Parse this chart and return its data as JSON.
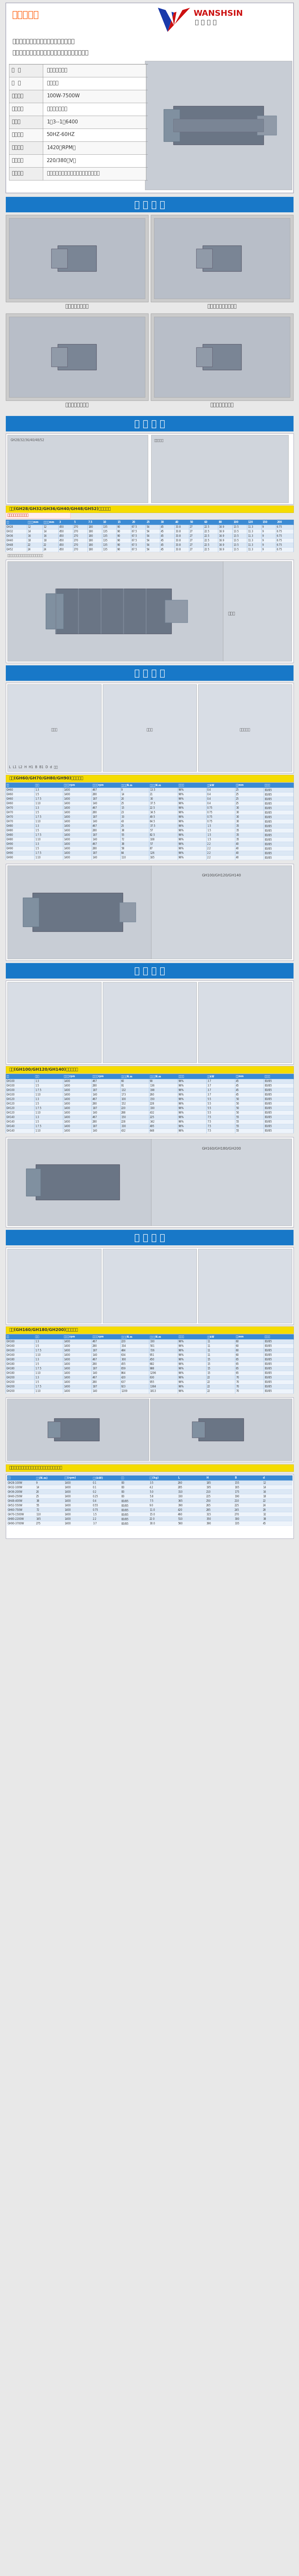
{
  "page_bg": "#e8e8e8",
  "content_bg": "#ffffff",
  "border_color": "#b0b0c0",
  "blue_header_bg": "#1878c8",
  "warm_tip_title": "温馨提示：",
  "warm_tip_lines": [
    "为了确保您在选型上不会出现偏差，请您",
    "在下单前请和客服沟通好，确定好型号，在付款。"
  ],
  "brand_latin": "WANSHSIN",
  "brand_cn": "萬 鑫 精 工",
  "spec_rows": [
    [
      "名  称",
      "中型齿轮减速机"
    ],
    [
      "品  牌",
      "万鑫电机"
    ],
    [
      "输出功率",
      "100W-7500W"
    ],
    [
      "产品类型",
      "三相异步电动机"
    ],
    [
      "减速比",
      "1：3--1：6400"
    ],
    [
      "输出频率",
      "50HZ-60HZ"
    ],
    [
      "额定转速",
      "1420（RPM）"
    ],
    [
      "额定电压",
      "220/380（V）"
    ],
    [
      "应用范围",
      "机械设备，包装机，模切机，流水设备等"
    ]
  ],
  "sec_product_show": "产 品 展 示",
  "captions": [
    "立式直接型减速机",
    "木工机械专用减速馬達",
    "卧式直接型减速机",
    "立式直接型减速机"
  ],
  "sec_small_param": "小 型 参 数",
  "sec_product_param": "产 品 参 数",
  "sec_mid_param1": "中 型 参 数",
  "sec_mid_param2": "中 型 参 数",
  "sec_mid_param3": "中 型 参 数",
  "small_tbl_title": "小型(GH28/GH32/GH36/GH40/GH48/GH52)规格参数表",
  "mid_tbl_title1": "中型(GH60/GH70/GH80/GH90)规格参数表",
  "mid_tbl_title2": "中型(GH100/GH120/GH140)规格参数表",
  "mid_tbl_title3": "中型(GH160/GH180/GH200)规格参数表",
  "link_text": "申请查看更多规格参数",
  "note_text": "注：以上数据仅供参考，实际以产品为准。",
  "small_headers": [
    "型号",
    "出力轴径mm",
    "输入轴径mm",
    "3",
    "5",
    "7.5",
    "10",
    "15",
    "20",
    "25",
    "30",
    "40",
    "50",
    "60",
    "80",
    "100",
    "120",
    "150",
    "200"
  ],
  "small_data": [
    [
      "GH28",
      "12",
      "12",
      "450",
      "270",
      "180",
      "135",
      "90",
      "67.5",
      "54",
      "45",
      "33.8",
      "27",
      "22.5",
      "16.9",
      "13.5",
      "11.3",
      "9",
      "6.75"
    ],
    [
      "GH32",
      "14",
      "14",
      "450",
      "270",
      "180",
      "135",
      "90",
      "67.5",
      "54",
      "45",
      "33.8",
      "27",
      "22.5",
      "16.9",
      "13.5",
      "11.3",
      "9",
      "6.75"
    ],
    [
      "GH36",
      "16",
      "16",
      "450",
      "270",
      "180",
      "135",
      "90",
      "67.5",
      "54",
      "45",
      "33.8",
      "27",
      "22.5",
      "16.9",
      "13.5",
      "11.3",
      "9",
      "6.75"
    ],
    [
      "GH40",
      "18",
      "18",
      "450",
      "270",
      "180",
      "135",
      "90",
      "67.5",
      "54",
      "45",
      "33.8",
      "27",
      "22.5",
      "16.9",
      "13.5",
      "11.3",
      "9",
      "6.75"
    ],
    [
      "GH48",
      "22",
      "22",
      "450",
      "270",
      "180",
      "135",
      "90",
      "67.5",
      "54",
      "45",
      "33.8",
      "27",
      "22.5",
      "16.9",
      "13.5",
      "11.3",
      "9",
      "6.75"
    ],
    [
      "GH52",
      "24",
      "24",
      "450",
      "270",
      "180",
      "135",
      "90",
      "67.5",
      "54",
      "45",
      "33.8",
      "27",
      "22.5",
      "16.9",
      "13.5",
      "11.3",
      "9",
      "6.75"
    ]
  ],
  "mid_headers1": [
    "型号",
    "减速比",
    "输入转速rpm",
    "输出转速rpm",
    "额定扭矩N.m",
    "最大扭矩N.m",
    "传动效率",
    "功率kW",
    "轴径mm",
    "安装方式"
  ],
  "mid_data1": [
    [
      "GH60",
      "1:3",
      "1400",
      "467",
      "9",
      "13.5",
      "96%",
      "0.4",
      "25",
      "B3/B5"
    ],
    [
      "GH60",
      "1:5",
      "1400",
      "280",
      "14",
      "21",
      "96%",
      "0.4",
      "25",
      "B3/B5"
    ],
    [
      "GH60",
      "1:7.5",
      "1400",
      "187",
      "20",
      "30",
      "96%",
      "0.4",
      "25",
      "B3/B5"
    ],
    [
      "GH60",
      "1:10",
      "1400",
      "140",
      "25",
      "37.5",
      "96%",
      "0.4",
      "25",
      "B3/B5"
    ],
    [
      "GH70",
      "1:3",
      "1400",
      "467",
      "15",
      "22.5",
      "96%",
      "0.75",
      "30",
      "B3/B5"
    ],
    [
      "GH70",
      "1:5",
      "1400",
      "280",
      "23",
      "34.5",
      "96%",
      "0.75",
      "30",
      "B3/B5"
    ],
    [
      "GH70",
      "1:7.5",
      "1400",
      "187",
      "33",
      "49.5",
      "96%",
      "0.75",
      "30",
      "B3/B5"
    ],
    [
      "GH70",
      "1:10",
      "1400",
      "140",
      "43",
      "64.5",
      "96%",
      "0.75",
      "30",
      "B3/B5"
    ],
    [
      "GH80",
      "1:3",
      "1400",
      "467",
      "25",
      "37.5",
      "96%",
      "1.5",
      "35",
      "B3/B5"
    ],
    [
      "GH80",
      "1:5",
      "1400",
      "280",
      "38",
      "57",
      "96%",
      "1.5",
      "35",
      "B3/B5"
    ],
    [
      "GH80",
      "1:7.5",
      "1400",
      "187",
      "55",
      "82.5",
      "96%",
      "1.5",
      "35",
      "B3/B5"
    ],
    [
      "GH80",
      "1:10",
      "1400",
      "140",
      "72",
      "108",
      "96%",
      "1.5",
      "35",
      "B3/B5"
    ],
    [
      "GH90",
      "1:3",
      "1400",
      "467",
      "38",
      "57",
      "96%",
      "2.2",
      "40",
      "B3/B5"
    ],
    [
      "GH90",
      "1:5",
      "1400",
      "280",
      "58",
      "87",
      "96%",
      "2.2",
      "40",
      "B3/B5"
    ],
    [
      "GH90",
      "1:7.5",
      "1400",
      "187",
      "84",
      "126",
      "96%",
      "2.2",
      "40",
      "B3/B5"
    ],
    [
      "GH90",
      "1:10",
      "1400",
      "140",
      "110",
      "165",
      "96%",
      "2.2",
      "40",
      "B3/B5"
    ]
  ],
  "mid_headers2": [
    "型号",
    "减速比",
    "输入转速rpm",
    "输出转速rpm",
    "额定扭矩N.m",
    "最大扭矩N.m",
    "传动效率",
    "功率kW",
    "轴径mm",
    "安装方式"
  ],
  "mid_data2": [
    [
      "GH100",
      "1:3",
      "1400",
      "467",
      "60",
      "90",
      "96%",
      "3.7",
      "45",
      "B3/B5"
    ],
    [
      "GH100",
      "1:5",
      "1400",
      "280",
      "91",
      "136",
      "96%",
      "3.7",
      "45",
      "B3/B5"
    ],
    [
      "GH100",
      "1:7.5",
      "1400",
      "187",
      "132",
      "198",
      "96%",
      "3.7",
      "45",
      "B3/B5"
    ],
    [
      "GH100",
      "1:10",
      "1400",
      "140",
      "173",
      "260",
      "96%",
      "3.7",
      "45",
      "B3/B5"
    ],
    [
      "GH120",
      "1:3",
      "1400",
      "467",
      "100",
      "150",
      "96%",
      "5.5",
      "50",
      "B3/B5"
    ],
    [
      "GH120",
      "1:5",
      "1400",
      "280",
      "152",
      "228",
      "96%",
      "5.5",
      "50",
      "B3/B5"
    ],
    [
      "GH120",
      "1:7.5",
      "1400",
      "187",
      "220",
      "330",
      "96%",
      "5.5",
      "50",
      "B3/B5"
    ],
    [
      "GH120",
      "1:10",
      "1400",
      "140",
      "288",
      "432",
      "96%",
      "5.5",
      "50",
      "B3/B5"
    ],
    [
      "GH140",
      "1:3",
      "1400",
      "467",
      "150",
      "225",
      "96%",
      "7.5",
      "55",
      "B3/B5"
    ],
    [
      "GH140",
      "1:5",
      "1400",
      "280",
      "228",
      "342",
      "96%",
      "7.5",
      "55",
      "B3/B5"
    ],
    [
      "GH140",
      "1:7.5",
      "1400",
      "187",
      "330",
      "495",
      "96%",
      "7.5",
      "55",
      "B3/B5"
    ],
    [
      "GH140",
      "1:10",
      "1400",
      "140",
      "432",
      "648",
      "96%",
      "7.5",
      "55",
      "B3/B5"
    ]
  ],
  "mid_headers3": [
    "型号",
    "减速比",
    "输入转速rpm",
    "输出转速rpm",
    "额定扭矩N.m",
    "最大扭矩N.m",
    "传动效率",
    "功率kW",
    "轴径mm",
    "安装方式"
  ],
  "mid_data3": [
    [
      "GH160",
      "1:3",
      "1400",
      "467",
      "220",
      "330",
      "96%",
      "11",
      "60",
      "B3/B5"
    ],
    [
      "GH160",
      "1:5",
      "1400",
      "280",
      "334",
      "501",
      "96%",
      "11",
      "60",
      "B3/B5"
    ],
    [
      "GH160",
      "1:7.5",
      "1400",
      "187",
      "484",
      "726",
      "96%",
      "11",
      "60",
      "B3/B5"
    ],
    [
      "GH160",
      "1:10",
      "1400",
      "140",
      "634",
      "951",
      "96%",
      "11",
      "60",
      "B3/B5"
    ],
    [
      "GH180",
      "1:3",
      "1400",
      "467",
      "300",
      "450",
      "96%",
      "15",
      "65",
      "B3/B5"
    ],
    [
      "GH180",
      "1:5",
      "1400",
      "280",
      "455",
      "682",
      "96%",
      "15",
      "65",
      "B3/B5"
    ],
    [
      "GH180",
      "1:7.5",
      "1400",
      "187",
      "659",
      "988",
      "96%",
      "15",
      "65",
      "B3/B5"
    ],
    [
      "GH180",
      "1:10",
      "1400",
      "140",
      "864",
      "1296",
      "96%",
      "15",
      "65",
      "B3/B5"
    ],
    [
      "GH200",
      "1:3",
      "1400",
      "467",
      "420",
      "630",
      "96%",
      "22",
      "70",
      "B3/B5"
    ],
    [
      "GH200",
      "1:5",
      "1400",
      "280",
      "637",
      "955",
      "96%",
      "22",
      "70",
      "B3/B5"
    ],
    [
      "GH200",
      "1:7.5",
      "1400",
      "187",
      "923",
      "1384",
      "96%",
      "22",
      "70",
      "B3/B5"
    ],
    [
      "GH200",
      "1:10",
      "1400",
      "140",
      "1209",
      "1813",
      "96%",
      "22",
      "70",
      "B3/B5"
    ]
  ],
  "tbl_hdr_bg": "#3a8ad4",
  "tbl_odd_bg": "#dce8f5",
  "tbl_even_bg": "#eef4fb",
  "tbl_title_bg": "#f5dc00",
  "tbl_title_color": "#333333",
  "gray_box_bg": "#d8d8d8",
  "white": "#ffffff",
  "light_gray": "#f0f0f0",
  "mid_gray": "#c8c8c8",
  "dark_text": "#333333",
  "med_text": "#555555",
  "link_color": "#cc2200"
}
